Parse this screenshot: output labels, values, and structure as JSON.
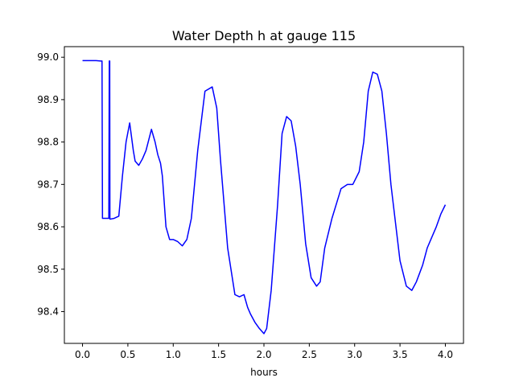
{
  "chart_data": {
    "type": "line",
    "title": "Water Depth h at gauge 115",
    "xlabel": "hours",
    "ylabel": "",
    "xlim": [
      -0.2,
      4.2
    ],
    "ylim": [
      98.325,
      99.025
    ],
    "xticks": [
      0.0,
      0.5,
      1.0,
      1.5,
      2.0,
      2.5,
      3.0,
      3.5,
      4.0
    ],
    "xtick_labels": [
      "0.0",
      "0.5",
      "1.0",
      "1.5",
      "2.0",
      "2.5",
      "3.0",
      "3.5",
      "4.0"
    ],
    "yticks": [
      98.4,
      98.5,
      98.6,
      98.7,
      98.8,
      98.9,
      99.0
    ],
    "ytick_labels": [
      "98.4",
      "98.5",
      "98.6",
      "98.7",
      "98.8",
      "98.9",
      "99.0"
    ],
    "grid": false,
    "legend": "none",
    "series": [
      {
        "color": "#0000ff",
        "x": [
          0.0,
          0.05,
          0.1,
          0.15,
          0.2,
          0.215,
          0.22,
          0.25,
          0.27,
          0.29,
          0.295,
          0.3,
          0.302,
          0.35,
          0.4,
          0.44,
          0.48,
          0.52,
          0.56,
          0.58,
          0.62,
          0.66,
          0.7,
          0.76,
          0.8,
          0.83,
          0.86,
          0.88,
          0.92,
          0.96,
          1.0,
          1.05,
          1.1,
          1.15,
          1.2,
          1.27,
          1.35,
          1.43,
          1.48,
          1.52,
          1.6,
          1.68,
          1.73,
          1.78,
          1.82,
          1.85,
          1.9,
          1.95,
          2.0,
          2.03,
          2.08,
          2.15,
          2.2,
          2.25,
          2.3,
          2.35,
          2.4,
          2.46,
          2.52,
          2.58,
          2.62,
          2.67,
          2.75,
          2.85,
          2.92,
          2.98,
          3.05,
          3.1,
          3.15,
          3.2,
          3.25,
          3.3,
          3.35,
          3.4,
          3.5,
          3.57,
          3.63,
          3.68,
          3.75,
          3.8,
          3.85,
          3.9,
          3.95,
          4.0
        ],
        "y": [
          98.992,
          98.992,
          98.992,
          98.992,
          98.991,
          98.991,
          98.62,
          98.62,
          98.62,
          98.62,
          98.991,
          98.991,
          98.618,
          98.62,
          98.625,
          98.72,
          98.8,
          98.845,
          98.78,
          98.755,
          98.745,
          98.76,
          98.78,
          98.83,
          98.8,
          98.77,
          98.75,
          98.72,
          98.6,
          98.57,
          98.57,
          98.565,
          98.555,
          98.57,
          98.62,
          98.78,
          98.92,
          98.93,
          98.88,
          98.76,
          98.55,
          98.44,
          98.435,
          98.44,
          98.41,
          98.395,
          98.375,
          98.36,
          98.348,
          98.36,
          98.45,
          98.65,
          98.82,
          98.86,
          98.85,
          98.79,
          98.7,
          98.56,
          98.48,
          98.46,
          98.47,
          98.55,
          98.62,
          98.69,
          98.7,
          98.7,
          98.73,
          98.8,
          98.92,
          98.965,
          98.96,
          98.92,
          98.82,
          98.7,
          98.52,
          98.46,
          98.45,
          98.47,
          98.51,
          98.55,
          98.575,
          98.6,
          98.63,
          98.652
        ]
      }
    ]
  }
}
